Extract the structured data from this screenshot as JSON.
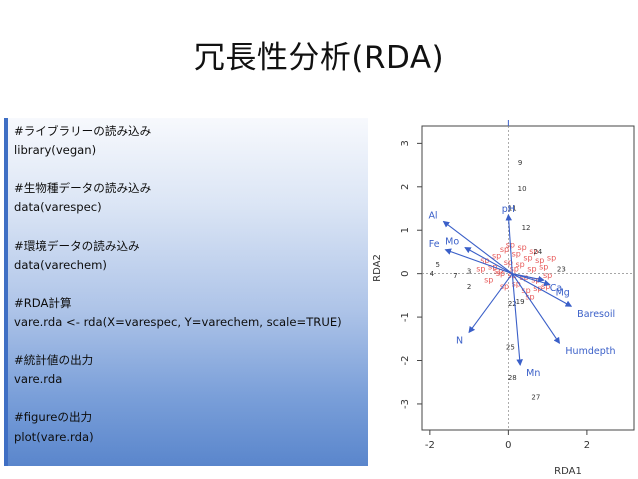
{
  "slide": {
    "title": "冗長性分析(RDA)"
  },
  "code": {
    "lines": [
      "#ライブラリーの読み込み",
      "library(vegan)",
      "",
      "#生物種データの読み込み",
      "data(varespec)",
      "",
      "#環境データの読み込み",
      "data(varechem)",
      "",
      "#RDA計算",
      "vare.rda <- rda(X=varespec, Y=varechem, scale=TRUE)",
      "",
      "#統計値の出力",
      "vare.rda",
      "",
      "#figureの出力",
      "plot(vare.rda)"
    ]
  },
  "colors": {
    "arrow": "#3a5fc8",
    "species": "#e33b3b",
    "sites": "#333333"
  },
  "chart_data": {
    "type": "scatter",
    "xlabel": "RDA1",
    "ylabel": "RDA2",
    "xlim": [
      -2.2,
      3.2
    ],
    "ylim": [
      -3.6,
      3.4
    ],
    "xticks": [
      -2,
      0,
      2
    ],
    "yticks": [
      -3,
      -2,
      -1,
      0,
      1,
      2,
      3
    ],
    "xtick_labels": [
      "-2",
      "0",
      "2"
    ],
    "ytick_labels": [
      "-3",
      "-2",
      "-1",
      "0",
      "1",
      "2",
      "3"
    ],
    "sites": [
      {
        "label": "9",
        "x": 0.3,
        "y": 2.5
      },
      {
        "label": "10",
        "x": 0.35,
        "y": 1.9
      },
      {
        "label": "12",
        "x": 0.45,
        "y": 1.0
      },
      {
        "label": "11",
        "x": 0.1,
        "y": 1.45
      },
      {
        "label": "5",
        "x": -1.8,
        "y": 0.15
      },
      {
        "label": "4",
        "x": -1.95,
        "y": -0.05
      },
      {
        "label": "7",
        "x": -1.35,
        "y": -0.1
      },
      {
        "label": "3",
        "x": -1.0,
        "y": 0.0
      },
      {
        "label": "2",
        "x": -1.0,
        "y": -0.35
      },
      {
        "label": "24",
        "x": 0.75,
        "y": 0.45
      },
      {
        "label": "23",
        "x": 1.35,
        "y": 0.05
      },
      {
        "label": "22",
        "x": 0.1,
        "y": -0.75
      },
      {
        "label": "19",
        "x": 0.3,
        "y": -0.7
      },
      {
        "label": "25",
        "x": 0.05,
        "y": -1.75
      },
      {
        "label": "28",
        "x": 0.1,
        "y": -2.45
      },
      {
        "label": "27",
        "x": 0.7,
        "y": -2.9
      }
    ],
    "species": [
      {
        "x": -0.3,
        "y": 0.35
      },
      {
        "x": -0.1,
        "y": 0.5
      },
      {
        "x": 0.2,
        "y": 0.4
      },
      {
        "x": 0.5,
        "y": 0.3
      },
      {
        "x": 0.8,
        "y": 0.25
      },
      {
        "x": 0.9,
        "y": 0.1
      },
      {
        "x": 0.6,
        "y": 0.05
      },
      {
        "x": 0.3,
        "y": 0.15
      },
      {
        "x": 0.0,
        "y": 0.2
      },
      {
        "x": -0.4,
        "y": 0.1
      },
      {
        "x": -0.6,
        "y": 0.25
      },
      {
        "x": -0.2,
        "y": -0.05
      },
      {
        "x": 0.1,
        "y": -0.1
      },
      {
        "x": 0.4,
        "y": -0.15
      },
      {
        "x": 0.7,
        "y": -0.2
      },
      {
        "x": 1.0,
        "y": -0.1
      },
      {
        "x": 0.2,
        "y": -0.3
      },
      {
        "x": -0.1,
        "y": -0.35
      },
      {
        "x": 0.45,
        "y": -0.45
      },
      {
        "x": 0.75,
        "y": -0.4
      },
      {
        "x": -0.5,
        "y": -0.2
      },
      {
        "x": 0.05,
        "y": 0.6
      },
      {
        "x": 0.35,
        "y": 0.55
      },
      {
        "x": 1.1,
        "y": 0.3
      },
      {
        "x": -0.25,
        "y": 0.0
      },
      {
        "x": 0.55,
        "y": -0.6
      },
      {
        "x": 0.15,
        "y": 0.05
      },
      {
        "x": 0.65,
        "y": 0.45
      },
      {
        "x": -0.7,
        "y": 0.05
      },
      {
        "x": 0.95,
        "y": -0.35
      }
    ],
    "arrows": [
      {
        "label": "Al",
        "x": -1.65,
        "y": 1.2
      },
      {
        "label": "Fe",
        "x": -1.6,
        "y": 0.55
      },
      {
        "label": "Mo",
        "x": -1.1,
        "y": 0.6
      },
      {
        "label": "pH",
        "x": 0.0,
        "y": 1.35
      },
      {
        "label": "N",
        "x": -1.0,
        "y": -1.35
      },
      {
        "label": "Mn",
        "x": 0.3,
        "y": -2.1
      },
      {
        "label": "Humdepth",
        "x": 1.3,
        "y": -1.6
      },
      {
        "label": "Baresoil",
        "x": 1.6,
        "y": -0.75
      },
      {
        "label": "Mg",
        "x": 1.05,
        "y": -0.25
      },
      {
        "label": "Ca",
        "x": 0.9,
        "y": -0.15
      }
    ]
  }
}
